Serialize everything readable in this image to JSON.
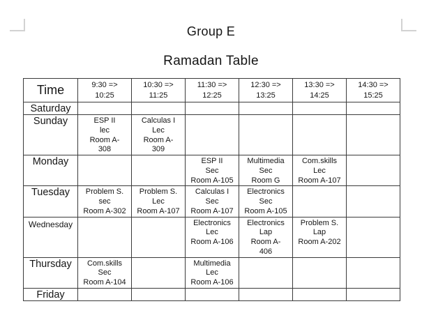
{
  "titles": {
    "group": "Group E",
    "table": "Ramadan Table"
  },
  "colors": {
    "table_border": "#3a3a3a",
    "margin_mark": "#d2d2d2",
    "text": "#151515",
    "background": "#ffffff"
  },
  "table": {
    "columns": [
      "Time",
      "9:30 =>\n10:25",
      "10:30 =>\n11:25",
      "11:30 =>\n12:25",
      "12:30 =>\n13:25",
      "13:30 =>\n14:25",
      "14:30 =>\n15:25"
    ],
    "rows": [
      {
        "day": "Saturday",
        "cells": [
          "",
          "",
          "",
          "",
          "",
          ""
        ]
      },
      {
        "day": "Sunday",
        "cells": [
          "ESP II\nlec\nRoom A-\n308",
          "Calculas I\nLec\nRoom A-\n309",
          "",
          "",
          "",
          ""
        ]
      },
      {
        "day": "Monday",
        "cells": [
          "",
          "",
          "ESP II\nSec\nRoom A-105",
          "Multimedia\nSec\nRoom G",
          "Com.skills\nLec\nRoom A-107",
          ""
        ]
      },
      {
        "day": "Tuesday",
        "cells": [
          "Problem S.\nsec\nRoom A-302",
          "Problem S.\nLec\nRoom A-107",
          "Calculas I\nSec\nRoom A-107",
          "Electronics\nSec\nRoom A-105",
          "",
          ""
        ]
      },
      {
        "day": "Wednesday",
        "cells": [
          "",
          "",
          "Electronics\nLec\nRoom A-106",
          "Electronics\nLap\nRoom A-\n406",
          "Problem S.\nLap\nRoom A-202",
          ""
        ]
      },
      {
        "day": "Thursday",
        "cells": [
          "Com.skills\nSec\nRoom A-104",
          "",
          "Multimedia\nLec\nRoom A-106",
          "",
          "",
          ""
        ]
      },
      {
        "day": "Friday",
        "cells": [
          "",
          "",
          "",
          "",
          "",
          ""
        ]
      }
    ]
  }
}
